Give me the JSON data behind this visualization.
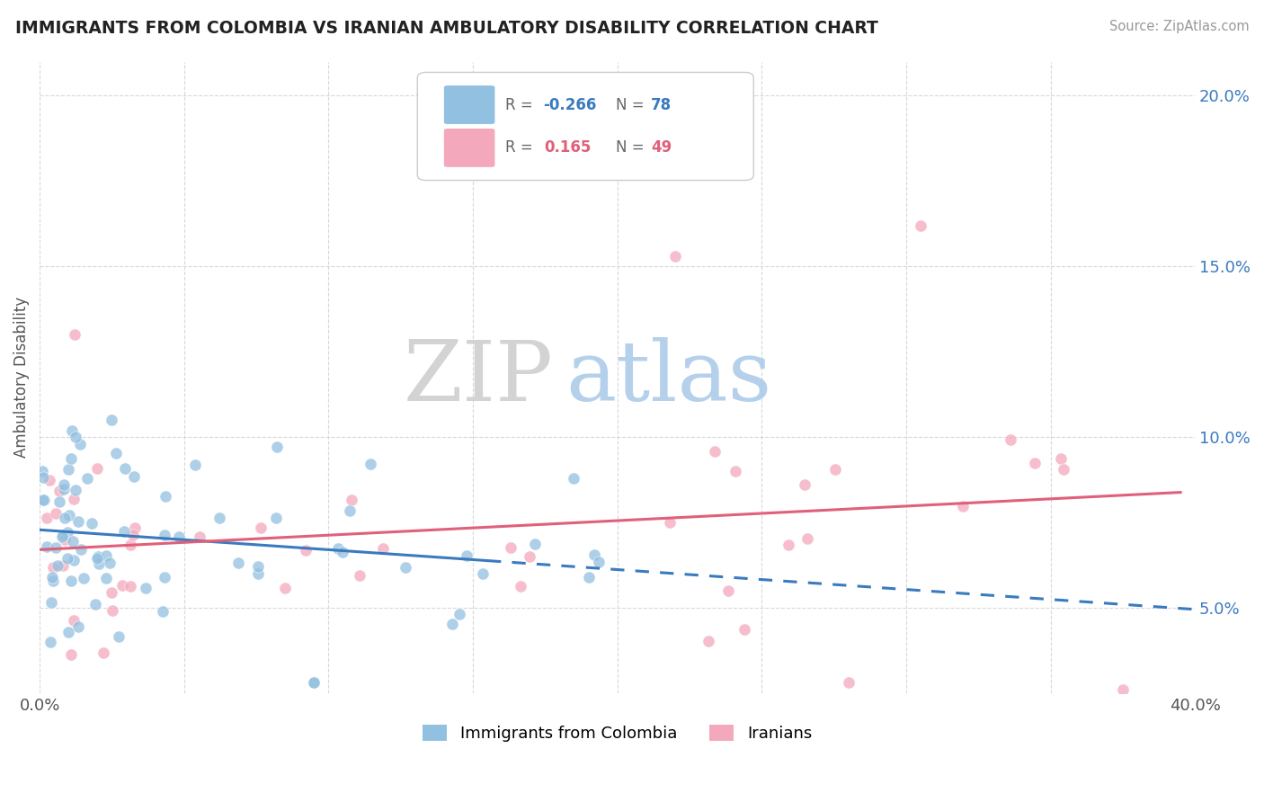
{
  "title": "IMMIGRANTS FROM COLOMBIA VS IRANIAN AMBULATORY DISABILITY CORRELATION CHART",
  "source": "Source: ZipAtlas.com",
  "ylabel": "Ambulatory Disability",
  "xlim": [
    0.0,
    0.4
  ],
  "ylim": [
    0.025,
    0.21
  ],
  "xticks": [
    0.0,
    0.05,
    0.1,
    0.15,
    0.2,
    0.25,
    0.3,
    0.35,
    0.4
  ],
  "xticklabels": [
    "0.0%",
    "",
    "",
    "",
    "",
    "",
    "",
    "",
    "40.0%"
  ],
  "yticks": [
    0.05,
    0.1,
    0.15,
    0.2
  ],
  "yticklabels": [
    "5.0%",
    "10.0%",
    "15.0%",
    "20.0%"
  ],
  "colombia_R": -0.266,
  "colombia_N": 78,
  "iran_R": 0.165,
  "iran_N": 49,
  "colombia_color": "#92c0e0",
  "iran_color": "#f4a8bc",
  "colombia_trend_color": "#3a7abf",
  "iran_trend_color": "#e0607a",
  "legend_label_1": "Immigrants from Colombia",
  "legend_label_2": "Iranians",
  "watermark_zip": "ZIP",
  "watermark_atlas": "atlas"
}
